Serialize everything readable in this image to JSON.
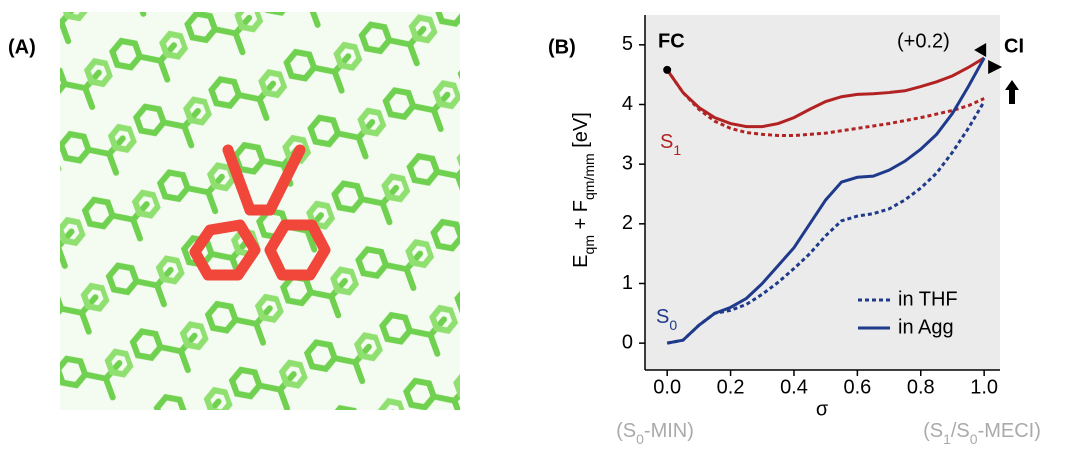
{
  "panels": {
    "a": "(A)",
    "b": "(B)"
  },
  "chart_data": {
    "type": "line",
    "x": [
      0,
      0.05,
      0.1,
      0.15,
      0.2,
      0.25,
      0.3,
      0.35,
      0.4,
      0.45,
      0.5,
      0.55,
      0.6,
      0.65,
      0.7,
      0.75,
      0.8,
      0.85,
      0.9,
      0.95,
      1.0
    ],
    "series": [
      {
        "color": "#b22222",
        "dash": "solid",
        "values": [
          4.58,
          4.2,
          3.95,
          3.78,
          3.68,
          3.63,
          3.63,
          3.68,
          3.78,
          3.92,
          4.05,
          4.13,
          4.17,
          4.18,
          4.2,
          4.23,
          4.3,
          4.38,
          4.48,
          4.62,
          4.78
        ]
      },
      {
        "color": "#b22222",
        "dash": "dotted",
        "values": [
          4.58,
          4.2,
          3.92,
          3.72,
          3.6,
          3.53,
          3.5,
          3.48,
          3.48,
          3.5,
          3.52,
          3.56,
          3.6,
          3.64,
          3.68,
          3.73,
          3.78,
          3.84,
          3.9,
          3.98,
          4.1
        ]
      },
      {
        "color": "#1f3a8a",
        "dash": "solid",
        "values": [
          0,
          0.05,
          0.3,
          0.5,
          0.6,
          0.75,
          1.0,
          1.3,
          1.6,
          2.0,
          2.4,
          2.7,
          2.78,
          2.8,
          2.9,
          3.05,
          3.25,
          3.5,
          3.85,
          4.3,
          4.78
        ]
      },
      {
        "color": "#1f3a8a",
        "dash": "dotted",
        "values": [
          0,
          0.05,
          0.3,
          0.5,
          0.55,
          0.65,
          0.82,
          1.02,
          1.25,
          1.5,
          1.8,
          2.05,
          2.13,
          2.17,
          2.25,
          2.4,
          2.6,
          2.85,
          3.2,
          3.6,
          4.05
        ]
      }
    ],
    "legend": [
      {
        "name": "in THF",
        "dash": "dotted",
        "color": "#1f3a8a"
      },
      {
        "name": "in Agg",
        "dash": "solid",
        "color": "#1f3a8a"
      }
    ],
    "xlabel": "σ",
    "ylabel": [
      {
        "text": "E"
      },
      {
        "sub": "qm"
      },
      {
        "text": " + F"
      },
      {
        "sub": "qm/mm"
      },
      {
        "text": " [eV]"
      }
    ],
    "xlim": [
      -0.07,
      1.05
    ],
    "ylim": [
      -0.45,
      5.5
    ],
    "xticks": [
      {
        "value": 0,
        "label": "0.0"
      },
      0.2,
      0.4,
      0.6,
      0.8,
      {
        "value": 1,
        "label": "1.0"
      }
    ],
    "yticks": [
      0,
      1,
      2,
      3,
      4,
      5
    ],
    "background": "#ebebeb",
    "annotations": {
      "fc": "FC",
      "shift": "(+0.2)",
      "ci": "CI",
      "s1": [
        {
          "text": "S"
        },
        {
          "sub": "1"
        }
      ],
      "s0": [
        {
          "text": "S"
        },
        {
          "sub": "0"
        }
      ],
      "left_end": [
        {
          "text": "(S"
        },
        {
          "sub": "0"
        },
        {
          "text": "-MIN)"
        }
      ],
      "right_end": [
        {
          "text": "(S"
        },
        {
          "sub": "1"
        },
        {
          "text": "/S"
        },
        {
          "sub": "0"
        },
        {
          "text": "-MECI)"
        }
      ]
    }
  }
}
